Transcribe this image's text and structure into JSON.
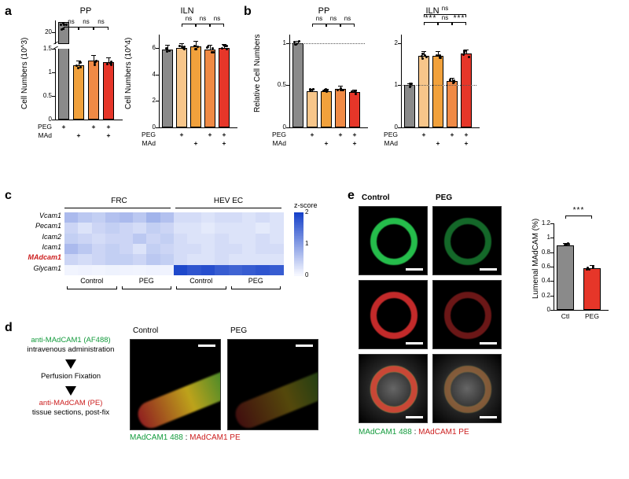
{
  "panel_labels": {
    "a": "a",
    "b": "b",
    "c": "c",
    "d": "d",
    "e": "e"
  },
  "a": {
    "pp": {
      "title": "PP",
      "ylabel": "Cell Numbers (10^3)",
      "yticks_top": [
        20
      ],
      "yticks_bot": [
        0.0,
        0.5,
        1.0,
        1.5
      ],
      "top_value": 20.2,
      "values": [
        1.2,
        1.15,
        1.25,
        1.22
      ],
      "errors": [
        0.1,
        0.1,
        0.12,
        0.1
      ],
      "top_color": "#8a8a8a",
      "colors": [
        "#f7c68a",
        "#f1a13c",
        "#f08a45",
        "#e63629"
      ],
      "sig": [
        "ns",
        "ns",
        "ns"
      ]
    },
    "iln": {
      "title": "ILN",
      "ylabel": "Cell Numbers (10^4)",
      "yticks": [
        0,
        2,
        4,
        6
      ],
      "values": [
        5.9,
        6.0,
        6.1,
        5.9,
        6.0
      ],
      "errors": [
        0.3,
        0.35,
        0.4,
        0.35,
        0.3
      ],
      "colors": [
        "#8a8a8a",
        "#f7c68a",
        "#f1a13c",
        "#f08a45",
        "#e63629"
      ],
      "sig": [
        "ns",
        "ns",
        "ns"
      ]
    },
    "xrows": {
      "peg": "PEG",
      "mad": "MAd",
      "marks": [
        "+",
        "+",
        "+",
        "+"
      ]
    }
  },
  "b": {
    "pp": {
      "title": "PP",
      "ylabel": "Relative Cell Numbers",
      "yticks": [
        0.0,
        0.5,
        1.0
      ],
      "ref": 1.0,
      "values": [
        1.0,
        0.43,
        0.43,
        0.46,
        0.42
      ],
      "errors": [
        0.03,
        0.03,
        0.03,
        0.03,
        0.03
      ],
      "colors": [
        "#8a8a8a",
        "#f7c68a",
        "#f1a13c",
        "#f08a45",
        "#e63629"
      ],
      "sig": [
        "ns",
        "ns",
        "ns"
      ]
    },
    "iln": {
      "title": "ILN",
      "ylabel": "",
      "yticks": [
        0,
        1,
        2
      ],
      "ref": 1.0,
      "values": [
        1.0,
        1.7,
        1.7,
        1.1,
        1.75
      ],
      "errors": [
        0.05,
        0.1,
        0.1,
        0.08,
        0.1
      ],
      "colors": [
        "#8a8a8a",
        "#f7c68a",
        "#f1a13c",
        "#f08a45",
        "#e63629"
      ],
      "sig_top": "ns",
      "sig_mid": [
        "***",
        "***"
      ],
      "sig_gap": "ns"
    }
  },
  "c": {
    "groups": [
      "FRC",
      "HEV EC"
    ],
    "subs": [
      "Control",
      "PEG",
      "Control",
      "PEG"
    ],
    "genes": [
      "Vcam1",
      "Pecam1",
      "Icam2",
      "Icam1",
      "MAdcam1",
      "Glycam1"
    ],
    "highlight_gene": "MAdcam1",
    "cols_per_sub": 4,
    "legend_label": "z-score",
    "legend_ticks": [
      2,
      1,
      0
    ],
    "data": [
      [
        0.9,
        0.7,
        0.6,
        0.8,
        0.9,
        0.7,
        1.0,
        0.8,
        0.4,
        0.4,
        0.3,
        0.4,
        0.4,
        0.3,
        0.4,
        0.3
      ],
      [
        0.5,
        0.3,
        0.5,
        0.6,
        0.5,
        0.4,
        0.6,
        0.5,
        0.3,
        0.3,
        0.2,
        0.3,
        0.3,
        0.3,
        0.2,
        0.3
      ],
      [
        0.6,
        0.5,
        0.4,
        0.5,
        0.5,
        0.7,
        0.5,
        0.6,
        0.4,
        0.3,
        0.3,
        0.4,
        0.3,
        0.3,
        0.4,
        0.3
      ],
      [
        0.9,
        0.7,
        0.5,
        0.6,
        0.5,
        0.3,
        0.6,
        0.5,
        0.4,
        0.4,
        0.3,
        0.4,
        0.4,
        0.3,
        0.4,
        0.4
      ],
      [
        0.5,
        0.4,
        0.5,
        0.6,
        0.6,
        0.5,
        0.7,
        0.6,
        0.4,
        0.3,
        0.3,
        0.4,
        0.3,
        0.3,
        0.3,
        0.3
      ],
      [
        0.05,
        0.07,
        0.05,
        0.08,
        0.06,
        0.05,
        0.07,
        0.06,
        2.6,
        2.4,
        2.5,
        2.3,
        2.2,
        2.3,
        2.4,
        2.3
      ]
    ],
    "scale_min": 0,
    "scale_max": 2.7,
    "color_lo": "#f5f7ff",
    "color_hi": "#1641c9"
  },
  "d": {
    "flow_steps": [
      {
        "html": "<span style='color:#149b3d'>anti-MAdCAM1 (AF488)</span><br>intravenous administration"
      },
      {
        "html": "Perfusion Fixation"
      },
      {
        "html": "<span style='color:#cc1f1f'>anti-MAdCAM (PE)</span><br>tissue sections, post-fix"
      }
    ],
    "img_titles": [
      "Control",
      "PEG"
    ],
    "legend": "<span style='color:#149b3d'>MAdCAM1 488</span> : <span style='color:#cc1f1f'>MAdCAM1 PE</span>"
  },
  "e": {
    "col_titles": [
      "Control",
      "PEG"
    ],
    "legend": "<span style='color:#149b3d'>MAdCAM1 488</span> : <span style='color:#cc1f1f'>MAdCAM1 PE</span>",
    "chart": {
      "title": "Lumenal MAdCAM (%)",
      "yticks": [
        0.0,
        0.2,
        0.4,
        0.6,
        0.8,
        1.0,
        1.2
      ],
      "values": [
        0.9,
        0.58
      ],
      "errors": [
        0.03,
        0.04
      ],
      "colors": [
        "#8a8a8a",
        "#e63629"
      ],
      "xlabels": [
        "Ctl",
        "PEG"
      ],
      "sig": "***"
    }
  },
  "style": {
    "font_base": "Arial",
    "gray": "#8a8a8a"
  }
}
